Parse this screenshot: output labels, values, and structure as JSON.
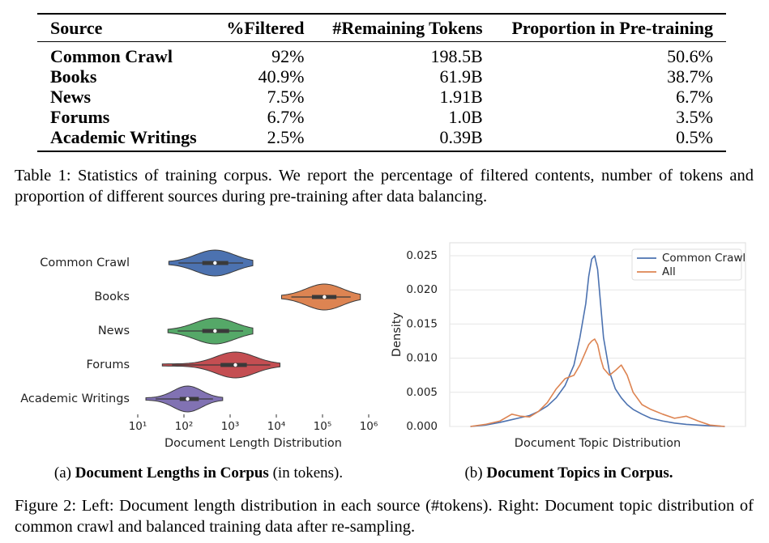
{
  "table": {
    "headers": [
      "Source",
      "%Filtered",
      "#Remaining Tokens",
      "Proportion in Pre-training"
    ],
    "rows": [
      [
        "Common Crawl",
        "92%",
        "198.5B",
        "50.6%"
      ],
      [
        "Books",
        "40.9%",
        "61.9B",
        "38.7%"
      ],
      [
        "News",
        "7.5%",
        "1.91B",
        "6.7%"
      ],
      [
        "Forums",
        "6.7%",
        "1.0B",
        "3.5%"
      ],
      [
        "Academic Writings",
        "2.5%",
        "0.39B",
        "0.5%"
      ]
    ],
    "caption": "Table 1: Statistics of training corpus. We report the percentage of filtered contents, number of tokens and proportion of different sources during pre-training after data balancing."
  },
  "chart_data": [
    {
      "type": "violin",
      "xlabel": "Document Length Distribution",
      "categories": [
        "Common Crawl",
        "Books",
        "News",
        "Forums",
        "Academic Writings"
      ],
      "colors": [
        "#4c72b0",
        "#dd8452",
        "#55a868",
        "#c44e52",
        "#8172b3"
      ],
      "stats": {
        "min": [
          47,
          13000,
          45,
          34,
          15
        ],
        "q1": [
          250,
          59000,
          250,
          620,
          81
        ],
        "median": [
          470,
          110000,
          470,
          1300,
          120
        ],
        "q3": [
          910,
          200000,
          950,
          2300,
          210
        ],
        "max": [
          3100,
          660000,
          3100,
          12000,
          690
        ]
      },
      "xscale": "log",
      "xlim": [
        10,
        1000000
      ],
      "xticks": [
        {
          "value": 10,
          "label": "10¹"
        },
        {
          "value": 100,
          "label": "10²"
        },
        {
          "value": 1000,
          "label": "10³"
        },
        {
          "value": 10000,
          "label": "10⁴"
        },
        {
          "value": 100000,
          "label": "10⁵"
        },
        {
          "value": 1000000,
          "label": "10⁶"
        }
      ]
    },
    {
      "type": "line",
      "xlabel": "Document Topic Distribution",
      "ylabel": "Density",
      "x": [
        0.07,
        0.12,
        0.17,
        0.21,
        0.24,
        0.27,
        0.3,
        0.33,
        0.36,
        0.39,
        0.42,
        0.44,
        0.46,
        0.47,
        0.48,
        0.49,
        0.5,
        0.51,
        0.52,
        0.54,
        0.56,
        0.58,
        0.6,
        0.62,
        0.65,
        0.68,
        0.72,
        0.76,
        0.8,
        0.84,
        0.88,
        0.93
      ],
      "xlim": [
        0,
        1
      ],
      "ylim": [
        0,
        0.0269
      ],
      "yticks": [
        {
          "value": 0,
          "label": "0.000"
        },
        0.005,
        {
          "value": 0.01,
          "label": "0.010"
        },
        0.015,
        {
          "value": 0.02,
          "label": "0.020"
        },
        0.025
      ],
      "grid": true,
      "legend": "upper right",
      "series": [
        {
          "name": "Common Crawl",
          "color": "#4c72b0",
          "values": [
            0,
            0.0002,
            0.0006,
            0.001,
            0.0013,
            0.0016,
            0.0022,
            0.003,
            0.0042,
            0.006,
            0.009,
            0.013,
            0.018,
            0.022,
            0.0245,
            0.025,
            0.023,
            0.018,
            0.013,
            0.008,
            0.0055,
            0.0042,
            0.0032,
            0.0025,
            0.0018,
            0.0012,
            0.0008,
            0.0005,
            0.0003,
            0.0002,
            0.0001,
            0
          ]
        },
        {
          "name": "All",
          "color": "#dd8452",
          "values": [
            0,
            0.0003,
            0.0008,
            0.0018,
            0.0015,
            0.0014,
            0.0022,
            0.0035,
            0.0055,
            0.007,
            0.0075,
            0.009,
            0.011,
            0.012,
            0.0125,
            0.0128,
            0.012,
            0.01,
            0.0085,
            0.0075,
            0.0082,
            0.009,
            0.0075,
            0.005,
            0.0032,
            0.0025,
            0.0018,
            0.0012,
            0.0015,
            0.0008,
            0.0002,
            0
          ]
        }
      ]
    }
  ],
  "subcaptions": [
    {
      "label": "(a)",
      "title": "Document Lengths in Corpus",
      "note": "(in tokens)."
    },
    {
      "label": "(b)",
      "title": "Document Topics in Corpus."
    }
  ],
  "figure_caption": "Figure 2: Left: Document length distribution in each source (#tokens). Right: Document topic distribution of common crawl and balanced training data after re-sampling."
}
